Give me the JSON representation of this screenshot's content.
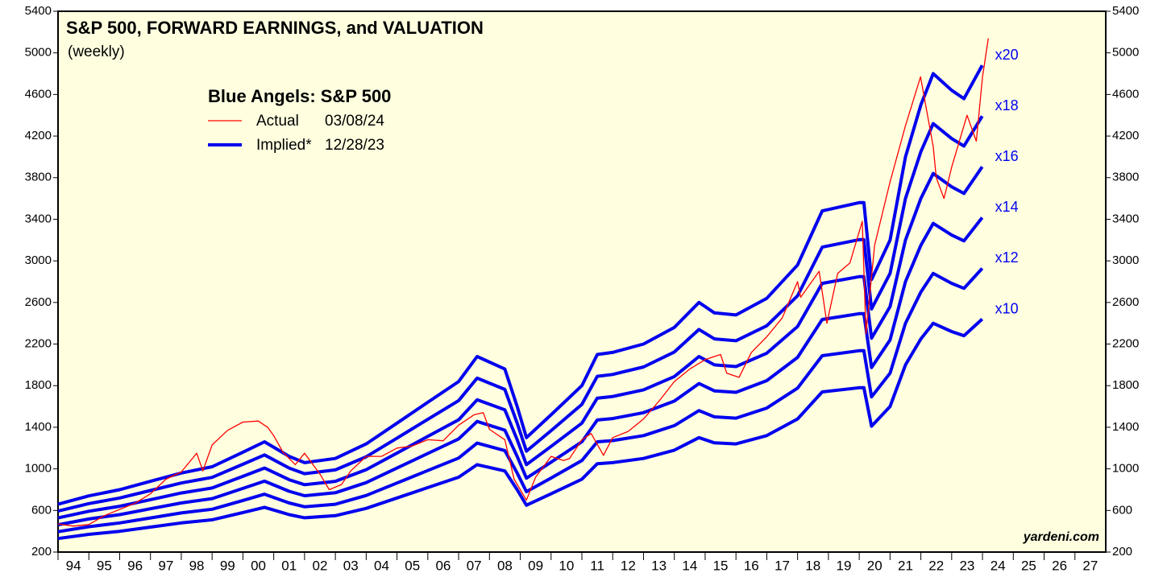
{
  "chart_data": {
    "type": "line",
    "title": "S&P 500, FORWARD EARNINGS, and VALUATION",
    "subtitle": "(weekly)",
    "legend_title": "Blue Angels: S&P 500",
    "credit": "yardeni.com",
    "xlim": [
      1994,
      2028
    ],
    "xticks": [
      {
        "value": 1994,
        "label": "94"
      },
      {
        "value": 1995,
        "label": "95"
      },
      {
        "value": 1996,
        "label": "96"
      },
      {
        "value": 1997,
        "label": "97"
      },
      {
        "value": 1998,
        "label": "98"
      },
      {
        "value": 1999,
        "label": "99"
      },
      {
        "value": 2000,
        "label": "00"
      },
      {
        "value": 2001,
        "label": "01"
      },
      {
        "value": 2002,
        "label": "02"
      },
      {
        "value": 2003,
        "label": "03"
      },
      {
        "value": 2004,
        "label": "04"
      },
      {
        "value": 2005,
        "label": "05"
      },
      {
        "value": 2006,
        "label": "06"
      },
      {
        "value": 2007,
        "label": "07"
      },
      {
        "value": 2008,
        "label": "08"
      },
      {
        "value": 2009,
        "label": "09"
      },
      {
        "value": 2010,
        "label": "10"
      },
      {
        "value": 2011,
        "label": "11"
      },
      {
        "value": 2012,
        "label": "12"
      },
      {
        "value": 2013,
        "label": "13"
      },
      {
        "value": 2014,
        "label": "14"
      },
      {
        "value": 2015,
        "label": "15"
      },
      {
        "value": 2016,
        "label": "16"
      },
      {
        "value": 2017,
        "label": "17"
      },
      {
        "value": 2018,
        "label": "18"
      },
      {
        "value": 2019,
        "label": "19"
      },
      {
        "value": 2020,
        "label": "20"
      },
      {
        "value": 2021,
        "label": "21"
      },
      {
        "value": 2022,
        "label": "22"
      },
      {
        "value": 2023,
        "label": "23"
      },
      {
        "value": 2024,
        "label": "24"
      },
      {
        "value": 2025,
        "label": "25"
      },
      {
        "value": 2026,
        "label": "26"
      },
      {
        "value": 2027,
        "label": "27"
      }
    ],
    "ylim": [
      200,
      5400
    ],
    "yticks": [
      200,
      600,
      1000,
      1400,
      1800,
      2200,
      2600,
      3000,
      3400,
      3800,
      4200,
      4600,
      5000,
      5400
    ],
    "series": [
      {
        "name": "Actual",
        "date": "03/08/24",
        "color": "#ff0000",
        "x": [
          1994.0,
          1994.5,
          1995.0,
          1995.5,
          1996.0,
          1996.5,
          1997.0,
          1997.5,
          1998.0,
          1998.5,
          1998.7,
          1999.0,
          1999.5,
          2000.0,
          2000.5,
          2000.8,
          2001.0,
          2001.3,
          2001.7,
          2002.0,
          2002.5,
          2002.8,
          2003.2,
          2003.5,
          2004.0,
          2004.5,
          2005.0,
          2005.5,
          2006.0,
          2006.5,
          2007.0,
          2007.5,
          2007.8,
          2008.0,
          2008.5,
          2008.8,
          2009.2,
          2009.5,
          2010.0,
          2010.4,
          2010.6,
          2011.0,
          2011.3,
          2011.7,
          2012.0,
          2012.5,
          2013.0,
          2013.5,
          2014.0,
          2014.5,
          2015.0,
          2015.5,
          2015.7,
          2016.1,
          2016.5,
          2017.0,
          2017.5,
          2018.0,
          2018.1,
          2018.7,
          2018.95,
          2019.3,
          2019.7,
          2020.1,
          2020.22,
          2020.5,
          2021.0,
          2021.5,
          2021.99,
          2022.4,
          2022.5,
          2022.75,
          2023.0,
          2023.5,
          2023.8,
          2024.0,
          2024.19
        ],
        "values": [
          470,
          450,
          465,
          550,
          610,
          670,
          760,
          900,
          970,
          1150,
          980,
          1230,
          1370,
          1450,
          1460,
          1400,
          1320,
          1160,
          1040,
          1150,
          950,
          800,
          850,
          980,
          1120,
          1120,
          1200,
          1220,
          1280,
          1270,
          1420,
          1520,
          1540,
          1380,
          1280,
          900,
          700,
          920,
          1120,
          1080,
          1100,
          1280,
          1340,
          1130,
          1300,
          1360,
          1480,
          1650,
          1840,
          1960,
          2050,
          2100,
          1920,
          1880,
          2120,
          2270,
          2450,
          2800,
          2650,
          2900,
          2400,
          2880,
          2980,
          3380,
          2300,
          3150,
          3760,
          4300,
          4770,
          4100,
          3800,
          3600,
          3900,
          4400,
          4150,
          4770,
          5140
        ]
      }
    ],
    "implied": {
      "name": "Implied*",
      "date": "12/28/23",
      "color": "#0000ee",
      "x": [
        1994.0,
        1995.0,
        1996.0,
        1997.0,
        1998.0,
        1999.0,
        2000.0,
        2000.7,
        2001.5,
        2002.0,
        2003.0,
        2004.0,
        2005.0,
        2006.0,
        2007.0,
        2007.6,
        2008.5,
        2008.9,
        2009.2,
        2010.0,
        2011.0,
        2011.5,
        2012.0,
        2013.0,
        2014.0,
        2014.8,
        2015.3,
        2016.0,
        2017.0,
        2018.0,
        2018.8,
        2020.0,
        2020.15,
        2020.4,
        2021.0,
        2021.5,
        2022.0,
        2022.4,
        2023.0,
        2023.4,
        2023.99
      ],
      "series": [
        {
          "name": "x20",
          "values": [
            660,
            740,
            800,
            880,
            960,
            1020,
            1160,
            1260,
            1120,
            1060,
            1100,
            1240,
            1440,
            1640,
            1840,
            2080,
            1960,
            1600,
            1300,
            1520,
            1800,
            2100,
            2120,
            2200,
            2360,
            2600,
            2500,
            2480,
            2640,
            2960,
            3480,
            3560,
            3560,
            2820,
            3200,
            4000,
            4500,
            4800,
            4640,
            4560,
            4880
          ]
        },
        {
          "name": "x18",
          "values": [
            594,
            666,
            720,
            792,
            864,
            918,
            1044,
            1134,
            1008,
            954,
            990,
            1116,
            1296,
            1476,
            1656,
            1872,
            1764,
            1440,
            1170,
            1368,
            1620,
            1890,
            1908,
            1980,
            2124,
            2340,
            2250,
            2232,
            2376,
            2664,
            3132,
            3204,
            3204,
            2538,
            2880,
            3600,
            4050,
            4320,
            4176,
            4104,
            4392
          ]
        },
        {
          "name": "x16",
          "values": [
            528,
            592,
            640,
            704,
            768,
            816,
            928,
            1008,
            896,
            848,
            880,
            992,
            1152,
            1312,
            1472,
            1664,
            1568,
            1280,
            1040,
            1216,
            1440,
            1680,
            1696,
            1760,
            1888,
            2080,
            2000,
            1984,
            2112,
            2368,
            2784,
            2848,
            2848,
            2256,
            2560,
            3200,
            3600,
            3840,
            3712,
            3648,
            3904
          ]
        },
        {
          "name": "x14",
          "values": [
            462,
            518,
            560,
            616,
            672,
            714,
            812,
            882,
            784,
            742,
            770,
            868,
            1008,
            1148,
            1288,
            1456,
            1372,
            1120,
            910,
            1064,
            1260,
            1470,
            1484,
            1540,
            1652,
            1820,
            1750,
            1736,
            1848,
            2072,
            2436,
            2492,
            2492,
            1974,
            2240,
            2800,
            3150,
            3360,
            3248,
            3192,
            3416
          ]
        },
        {
          "name": "x12",
          "values": [
            396,
            444,
            480,
            528,
            576,
            612,
            696,
            756,
            672,
            636,
            660,
            744,
            864,
            984,
            1104,
            1248,
            1176,
            960,
            780,
            912,
            1080,
            1260,
            1272,
            1320,
            1416,
            1560,
            1500,
            1488,
            1584,
            1776,
            2088,
            2136,
            2136,
            1692,
            1920,
            2400,
            2700,
            2880,
            2784,
            2736,
            2928
          ]
        },
        {
          "name": "x10",
          "values": [
            330,
            370,
            400,
            440,
            480,
            510,
            580,
            630,
            560,
            530,
            550,
            620,
            720,
            820,
            920,
            1040,
            980,
            800,
            650,
            760,
            900,
            1050,
            1060,
            1100,
            1180,
            1300,
            1250,
            1240,
            1320,
            1480,
            1740,
            1780,
            1780,
            1410,
            1600,
            2000,
            2250,
            2400,
            2320,
            2280,
            2440
          ]
        }
      ]
    }
  }
}
